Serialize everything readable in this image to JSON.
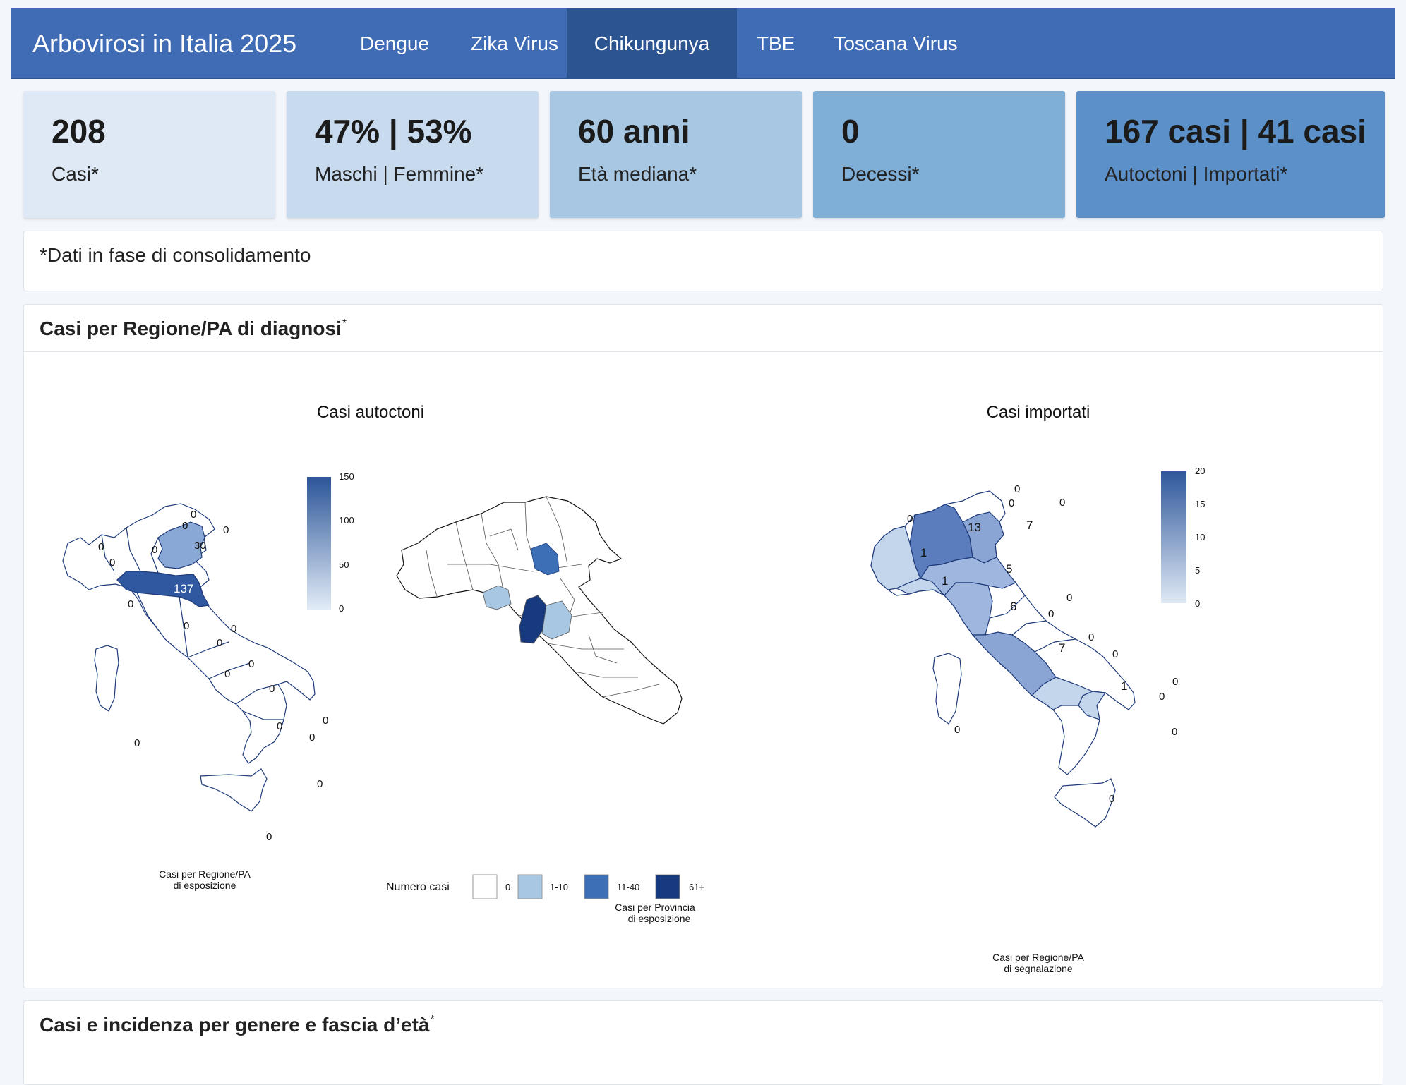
{
  "nav": {
    "brand": "Arbovirosi in Italia 2025",
    "tabs": [
      {
        "label": "Dengue"
      },
      {
        "label": "Zika Virus"
      },
      {
        "label": "Chikungunya",
        "active": true
      },
      {
        "label": "TBE"
      },
      {
        "label": "Toscana Virus"
      }
    ]
  },
  "value_boxes": [
    {
      "value": "208",
      "label": "Casi*",
      "color": "#dfe9f5"
    },
    {
      "value": "47% | 53%",
      "label": "Maschi | Femmine*",
      "color": "#c8daee"
    },
    {
      "value": "60 anni",
      "label": "Età mediana*",
      "color": "#a7c7e2"
    },
    {
      "value": "0",
      "label": "Decessi*",
      "color": "#7faed6"
    },
    {
      "value": "167 casi | 41 casi",
      "label": "Autoctoni | Importati*",
      "color": "#5b90c8"
    }
  ],
  "note": "*Dati in fase di consolidamento",
  "map_section": {
    "title": "Casi per Regione/PA di diagnosi",
    "title_mark": "*",
    "autoctoni": {
      "title": "Casi autoctoni",
      "region_labels": [
        "0",
        "0",
        "0",
        "0",
        "0",
        "30",
        "0",
        "137",
        "0",
        "0",
        "0",
        "0",
        "0",
        "0",
        "0",
        "0",
        "0",
        "0",
        "0",
        "0",
        "0"
      ],
      "colorbar_ticks": [
        "150",
        "100",
        "50",
        "0"
      ],
      "caption_line1": "Casi per Regione/PA",
      "caption_line2": "di esposizione"
    },
    "province": {
      "legend_title": "Numero casi",
      "legend_items": [
        {
          "label": "0",
          "color": "#ffffff"
        },
        {
          "label": "1-10",
          "color": "#a7c7e2"
        },
        {
          "label": "11-40",
          "color": "#3d6fb6"
        },
        {
          "label": "61+",
          "color": "#17397e"
        }
      ],
      "caption_line1": "Casi per Provincia",
      "caption_line2": "di esposizione"
    },
    "importati": {
      "title": "Casi importati",
      "region_labels": [
        "0",
        "0",
        "0",
        "0",
        "13",
        "7",
        "1",
        "1",
        "5",
        "6",
        "0",
        "0",
        "7",
        "0",
        "0",
        "1",
        "0",
        "0",
        "0",
        "0",
        "0"
      ],
      "colorbar_ticks": [
        "20",
        "15",
        "10",
        "5",
        "0"
      ],
      "caption_line1": "Casi per Regione/PA",
      "caption_line2": "di segnalazione"
    }
  },
  "bottom_card": {
    "title": "Casi e incidenza per genere e fascia d’età",
    "title_mark": "*"
  }
}
